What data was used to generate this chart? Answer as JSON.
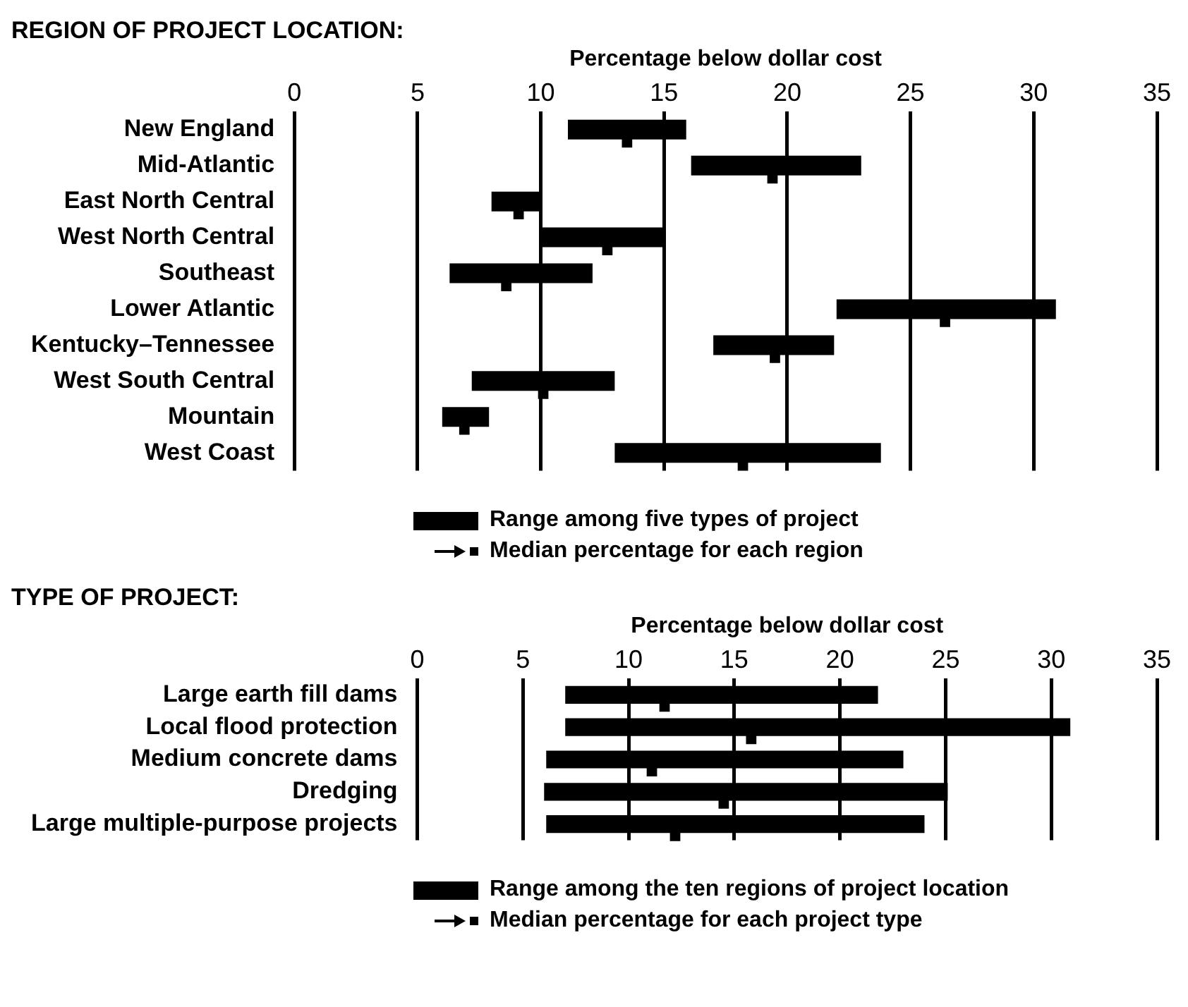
{
  "chart_data": [
    {
      "type": "bar",
      "orientation": "horizontal",
      "title": "REGION OF PROJECT LOCATION:",
      "xlabel": "Percentage below dollar cost",
      "categories": [
        "New England",
        "Mid-Atlantic",
        "East North Central",
        "West North Central",
        "Southeast",
        "Lower Atlantic",
        "Kentucky–Tennessee",
        "West South Central",
        "Mountain",
        "West Coast"
      ],
      "series": [
        {
          "name": "Range among five types of project",
          "color": "#000000",
          "base": [
            11.1,
            16.1,
            8.0,
            10.0,
            6.3,
            22.0,
            17.0,
            7.2,
            6.0,
            13.0
          ],
          "values": [
            4.8,
            6.9,
            2.0,
            5.0,
            5.8,
            8.9,
            4.9,
            5.8,
            1.9,
            10.8
          ]
        },
        {
          "type": "scatter",
          "name": "Median percentage for each region",
          "color": "#000000",
          "x": [
            "New England",
            "Mid-Atlantic",
            "East North Central",
            "West North Central",
            "Southeast",
            "Lower Atlantic",
            "Kentucky–Tennessee",
            "West South Central",
            "Mountain",
            "West Coast"
          ],
          "values": [
            13.5,
            19.4,
            9.1,
            12.7,
            8.6,
            26.4,
            19.5,
            10.1,
            6.9,
            18.2
          ]
        }
      ],
      "xlim": [
        0,
        35
      ],
      "xticks": [
        0,
        5,
        10,
        15,
        20,
        25,
        30,
        35
      ],
      "grid": "x",
      "legend": "bottom",
      "marker": "square"
    },
    {
      "type": "bar",
      "orientation": "horizontal",
      "title": "TYPE OF PROJECT:",
      "xlabel": "Percentage below dollar cost",
      "categories": [
        "Large earth fill dams",
        "Local flood protection",
        "Medium concrete dams",
        "Dredging",
        "Large multiple-purpose projects"
      ],
      "series": [
        {
          "name": "Range among the ten regions of project location",
          "color": "#000000",
          "base": [
            7.0,
            7.0,
            6.1,
            6.0,
            6.1
          ],
          "values": [
            14.8,
            23.9,
            16.9,
            19.1,
            17.9
          ]
        },
        {
          "type": "scatter",
          "name": "Median percentage for each project type",
          "color": "#000000",
          "x": [
            "Large earth fill dams",
            "Local flood protection",
            "Medium concrete dams",
            "Dredging",
            "Large multiple-purpose projects"
          ],
          "values": [
            11.7,
            15.8,
            11.1,
            14.5,
            12.2
          ]
        }
      ],
      "xlim": [
        0,
        35
      ],
      "xticks": [
        0,
        5,
        10,
        15,
        20,
        25,
        30,
        35
      ],
      "grid": "x",
      "legend": "bottom",
      "marker": "square"
    }
  ]
}
